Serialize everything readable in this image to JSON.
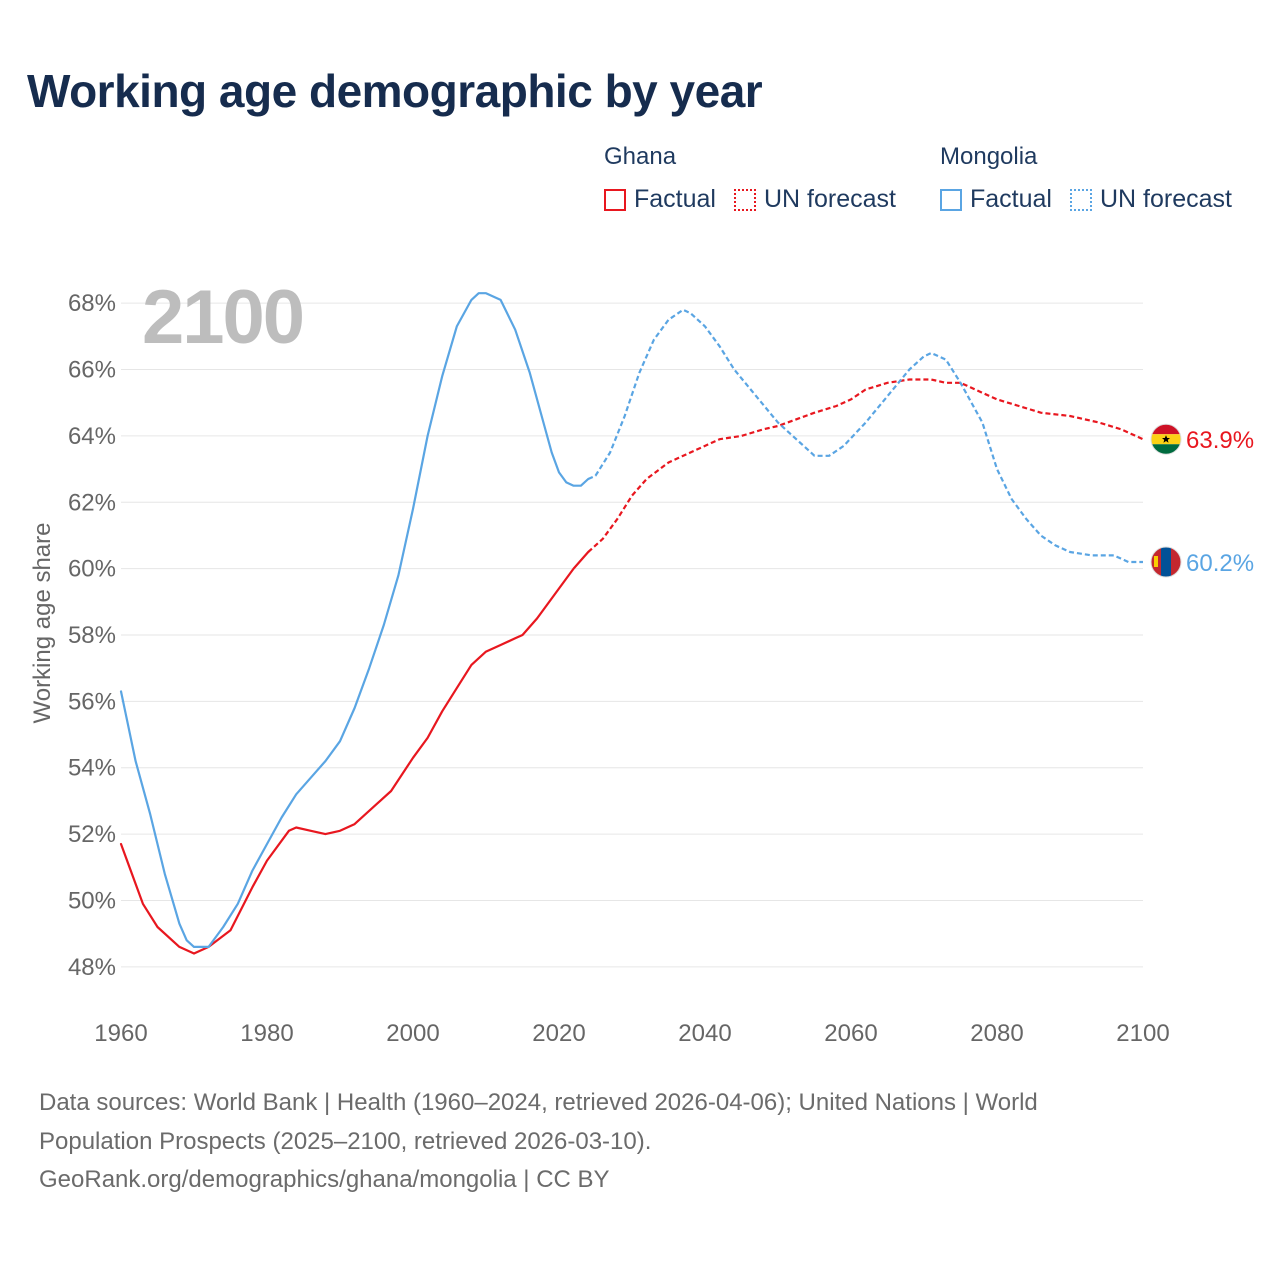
{
  "header": {
    "title": "Working age demographic by year"
  },
  "legend": {
    "groups": [
      {
        "name": "Ghana",
        "color": "#e8171f",
        "items": [
          {
            "label": "Factual",
            "style": "solid"
          },
          {
            "label": "UN forecast",
            "style": "dotted"
          }
        ]
      },
      {
        "name": "Mongolia",
        "color": "#5aa5e3",
        "items": [
          {
            "label": "Factual",
            "style": "solid"
          },
          {
            "label": "UN forecast",
            "style": "dotted"
          }
        ]
      }
    ]
  },
  "chart_data": {
    "type": "line",
    "year_label": "2100",
    "ylabel": "Working age share",
    "xlabel": "",
    "xlim": [
      1960,
      2100
    ],
    "ylim": [
      47,
      69
    ],
    "x_ticks": [
      1960,
      1980,
      2000,
      2020,
      2040,
      2060,
      2080,
      2100
    ],
    "y_ticks": [
      48,
      50,
      52,
      54,
      56,
      58,
      60,
      62,
      64,
      66,
      68
    ],
    "y_tick_labels": [
      "48%",
      "50%",
      "52%",
      "54%",
      "56%",
      "58%",
      "60%",
      "62%",
      "64%",
      "66%",
      "68%"
    ],
    "grid": true,
    "factual_end_year": 2024,
    "series": [
      {
        "name": "Ghana",
        "color": "#e8171f",
        "end_label": "63.9%",
        "flag": "ghana-flag",
        "points": [
          [
            1960,
            51.7
          ],
          [
            1963,
            49.9
          ],
          [
            1965,
            49.2
          ],
          [
            1968,
            48.6
          ],
          [
            1970,
            48.4
          ],
          [
            1972,
            48.6
          ],
          [
            1975,
            49.1
          ],
          [
            1978,
            50.4
          ],
          [
            1980,
            51.2
          ],
          [
            1983,
            52.1
          ],
          [
            1984,
            52.2
          ],
          [
            1986,
            52.1
          ],
          [
            1988,
            52.0
          ],
          [
            1990,
            52.1
          ],
          [
            1992,
            52.3
          ],
          [
            1995,
            52.9
          ],
          [
            1997,
            53.3
          ],
          [
            2000,
            54.3
          ],
          [
            2002,
            54.9
          ],
          [
            2004,
            55.7
          ],
          [
            2006,
            56.4
          ],
          [
            2008,
            57.1
          ],
          [
            2010,
            57.5
          ],
          [
            2012,
            57.7
          ],
          [
            2014,
            57.9
          ],
          [
            2015,
            58.0
          ],
          [
            2017,
            58.5
          ],
          [
            2020,
            59.4
          ],
          [
            2022,
            60.0
          ],
          [
            2024,
            60.5
          ],
          [
            2026,
            60.9
          ],
          [
            2028,
            61.5
          ],
          [
            2030,
            62.2
          ],
          [
            2032,
            62.7
          ],
          [
            2035,
            63.2
          ],
          [
            2038,
            63.5
          ],
          [
            2040,
            63.7
          ],
          [
            2042,
            63.9
          ],
          [
            2045,
            64.0
          ],
          [
            2048,
            64.2
          ],
          [
            2050,
            64.3
          ],
          [
            2055,
            64.7
          ],
          [
            2058,
            64.9
          ],
          [
            2060,
            65.1
          ],
          [
            2062,
            65.4
          ],
          [
            2065,
            65.6
          ],
          [
            2068,
            65.7
          ],
          [
            2071,
            65.7
          ],
          [
            2073,
            65.6
          ],
          [
            2075,
            65.6
          ],
          [
            2078,
            65.3
          ],
          [
            2080,
            65.1
          ],
          [
            2083,
            64.9
          ],
          [
            2086,
            64.7
          ],
          [
            2090,
            64.6
          ],
          [
            2094,
            64.4
          ],
          [
            2097,
            64.2
          ],
          [
            2100,
            63.9
          ]
        ]
      },
      {
        "name": "Mongolia",
        "color": "#5aa5e3",
        "end_label": "60.2%",
        "flag": "mongolia-flag",
        "points": [
          [
            1960,
            56.3
          ],
          [
            1962,
            54.2
          ],
          [
            1964,
            52.6
          ],
          [
            1966,
            50.8
          ],
          [
            1968,
            49.3
          ],
          [
            1969,
            48.8
          ],
          [
            1970,
            48.6
          ],
          [
            1971,
            48.6
          ],
          [
            1972,
            48.6
          ],
          [
            1974,
            49.2
          ],
          [
            1976,
            49.9
          ],
          [
            1978,
            50.9
          ],
          [
            1980,
            51.7
          ],
          [
            1982,
            52.5
          ],
          [
            1984,
            53.2
          ],
          [
            1986,
            53.7
          ],
          [
            1988,
            54.2
          ],
          [
            1990,
            54.8
          ],
          [
            1992,
            55.8
          ],
          [
            1994,
            57.0
          ],
          [
            1996,
            58.3
          ],
          [
            1998,
            59.8
          ],
          [
            2000,
            61.8
          ],
          [
            2002,
            64.0
          ],
          [
            2004,
            65.8
          ],
          [
            2006,
            67.3
          ],
          [
            2008,
            68.1
          ],
          [
            2009,
            68.3
          ],
          [
            2010,
            68.3
          ],
          [
            2012,
            68.1
          ],
          [
            2014,
            67.2
          ],
          [
            2016,
            65.9
          ],
          [
            2018,
            64.3
          ],
          [
            2019,
            63.5
          ],
          [
            2020,
            62.9
          ],
          [
            2021,
            62.6
          ],
          [
            2022,
            62.5
          ],
          [
            2023,
            62.5
          ],
          [
            2024,
            62.7
          ],
          [
            2025,
            62.8
          ],
          [
            2027,
            63.5
          ],
          [
            2029,
            64.6
          ],
          [
            2031,
            65.9
          ],
          [
            2033,
            66.9
          ],
          [
            2035,
            67.5
          ],
          [
            2037,
            67.8
          ],
          [
            2038,
            67.7
          ],
          [
            2040,
            67.3
          ],
          [
            2042,
            66.7
          ],
          [
            2044,
            66.0
          ],
          [
            2047,
            65.2
          ],
          [
            2050,
            64.4
          ],
          [
            2053,
            63.8
          ],
          [
            2055,
            63.4
          ],
          [
            2057,
            63.4
          ],
          [
            2059,
            63.7
          ],
          [
            2062,
            64.4
          ],
          [
            2065,
            65.2
          ],
          [
            2068,
            66.0
          ],
          [
            2070,
            66.4
          ],
          [
            2071,
            66.5
          ],
          [
            2073,
            66.3
          ],
          [
            2075,
            65.6
          ],
          [
            2078,
            64.4
          ],
          [
            2080,
            63.0
          ],
          [
            2082,
            62.1
          ],
          [
            2084,
            61.5
          ],
          [
            2086,
            61.0
          ],
          [
            2088,
            60.7
          ],
          [
            2090,
            60.5
          ],
          [
            2093,
            60.4
          ],
          [
            2096,
            60.4
          ],
          [
            2098,
            60.2
          ],
          [
            2100,
            60.2
          ]
        ]
      }
    ]
  },
  "footer": {
    "line1": "Data sources: World Bank | Health (1960–2024, retrieved 2026-04-06); United Nations | World",
    "line2": "Population Prospects (2025–2100, retrieved 2026-03-10).",
    "line3": "GeoRank.org/demographics/ghana/mongolia | CC BY"
  }
}
